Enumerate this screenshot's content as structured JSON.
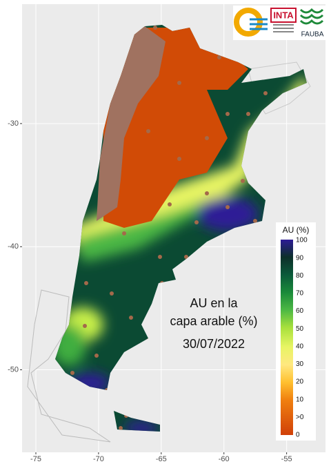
{
  "map": {
    "xlim": [
      -76.1,
      -51.9
    ],
    "ylim": [
      -56.7,
      -20.3
    ],
    "xticks": [
      -75,
      -70,
      -65,
      -60,
      -55
    ],
    "yticks": [
      -30,
      -40,
      -50
    ]
  },
  "logos": {
    "inta": "INTA",
    "fauba": "FAUBA"
  },
  "annotation": [
    "AU en la",
    "capa arable (%)",
    "30/07/2022"
  ],
  "legend": {
    "title": "AU (%)",
    "labels": [
      "100",
      "90",
      "80",
      "70",
      "60",
      "50",
      "40",
      "30",
      "20",
      "10",
      ">0",
      "0"
    ]
  }
}
